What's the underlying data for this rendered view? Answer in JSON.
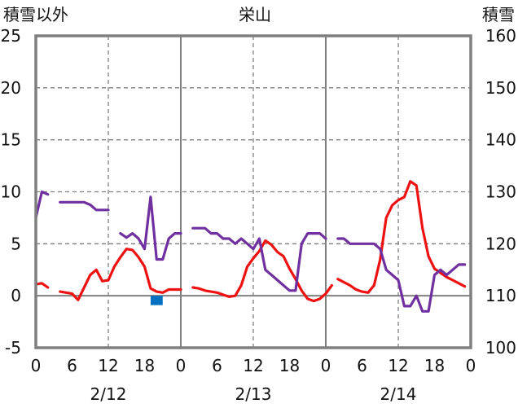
{
  "chart_data": {
    "type": "line",
    "title": "栄山",
    "left_axis_title": "積雪以外",
    "right_axis_title": "積雪",
    "left_ylim": [
      -5,
      25
    ],
    "left_yticks": [
      -5,
      0,
      5,
      10,
      15,
      20,
      25
    ],
    "right_ylim": [
      100,
      160
    ],
    "right_yticks": [
      100,
      110,
      120,
      130,
      140,
      150,
      160
    ],
    "x_range": [
      0,
      72
    ],
    "x_tick_positions": [
      0,
      6,
      12,
      18,
      24,
      30,
      36,
      42,
      48,
      54,
      60,
      66,
      72
    ],
    "x_tick_labels": [
      "0",
      "6",
      "12",
      "18",
      "0",
      "6",
      "12",
      "18",
      "0",
      "6",
      "12",
      "18",
      "0"
    ],
    "day_labels": [
      {
        "x": 6,
        "label": "2/12"
      },
      {
        "x": 18,
        "label": "2/13"
      },
      {
        "x": 30,
        "label": "2/14"
      }
    ],
    "day_positions": [
      12,
      36,
      60
    ],
    "day_boundaries": [
      24,
      48
    ],
    "dashed_verticals": [
      12,
      36,
      60
    ],
    "grid_h_values": [
      5,
      10,
      15,
      20
    ],
    "series": [
      {
        "color": "#ee1111",
        "axis": "left",
        "segments": [
          [
            [
              0,
              1.1
            ],
            [
              1,
              1.2
            ],
            [
              2,
              0.8
            ]
          ],
          [
            [
              4,
              0.4
            ],
            [
              5,
              0.3
            ],
            [
              6,
              0.2
            ],
            [
              7,
              -0.4
            ],
            [
              8,
              0.8
            ],
            [
              9,
              2.0
            ],
            [
              10,
              2.5
            ],
            [
              11,
              1.4
            ],
            [
              12,
              1.5
            ],
            [
              13,
              2.8
            ],
            [
              14,
              3.7
            ],
            [
              15,
              4.5
            ],
            [
              16,
              4.4
            ],
            [
              17,
              3.7
            ],
            [
              18,
              2.8
            ],
            [
              19,
              0.7
            ],
            [
              20,
              0.4
            ],
            [
              21,
              0.3
            ],
            [
              22,
              0.6
            ],
            [
              23,
              0.6
            ],
            [
              24,
              0.6
            ]
          ],
          [
            [
              26,
              0.8
            ],
            [
              27,
              0.7
            ],
            [
              28,
              0.5
            ],
            [
              29,
              0.4
            ],
            [
              30,
              0.3
            ],
            [
              31,
              0.1
            ],
            [
              32,
              -0.1
            ],
            [
              33,
              0.0
            ],
            [
              34,
              1.0
            ],
            [
              35,
              2.8
            ],
            [
              36,
              3.6
            ],
            [
              37,
              4.3
            ],
            [
              38,
              5.3
            ],
            [
              39,
              4.9
            ],
            [
              40,
              4.2
            ],
            [
              41,
              3.8
            ],
            [
              42,
              2.6
            ],
            [
              43,
              1.6
            ],
            [
              44,
              0.5
            ],
            [
              45,
              -0.3
            ],
            [
              46,
              -0.5
            ],
            [
              47,
              -0.3
            ],
            [
              48,
              0.2
            ],
            [
              49,
              1.0
            ]
          ],
          [
            [
              50,
              1.6
            ],
            [
              51,
              1.3
            ],
            [
              52,
              1.0
            ],
            [
              53,
              0.6
            ],
            [
              54,
              0.4
            ],
            [
              55,
              0.3
            ],
            [
              56,
              1.0
            ],
            [
              57,
              3.5
            ],
            [
              58,
              7.5
            ],
            [
              59,
              8.7
            ],
            [
              60,
              9.2
            ],
            [
              61,
              9.5
            ],
            [
              62,
              11.0
            ],
            [
              63,
              10.6
            ],
            [
              64,
              6.5
            ],
            [
              65,
              3.8
            ],
            [
              66,
              2.6
            ],
            [
              67,
              2.2
            ],
            [
              68,
              1.8
            ],
            [
              69,
              1.5
            ],
            [
              70,
              1.2
            ],
            [
              71,
              0.9
            ]
          ]
        ]
      },
      {
        "color": "#7030a0",
        "axis": "right",
        "segments": [
          [
            [
              0,
              125.0
            ],
            [
              1,
              130.0
            ],
            [
              2,
              129.5
            ]
          ],
          [
            [
              4,
              128.0
            ],
            [
              5,
              128.0
            ],
            [
              6,
              128.0
            ],
            [
              7,
              128.0
            ],
            [
              8,
              128.0
            ],
            [
              9,
              127.5
            ],
            [
              10,
              126.5
            ],
            [
              11,
              126.5
            ],
            [
              12,
              126.5
            ]
          ],
          [
            [
              14,
              122.0
            ],
            [
              15,
              121.2
            ],
            [
              16,
              122.0
            ],
            [
              17,
              121.0
            ],
            [
              18,
              119.0
            ],
            [
              19,
              129.0
            ],
            [
              20,
              117.0
            ],
            [
              21,
              117.0
            ],
            [
              22,
              121.0
            ],
            [
              23,
              122.0
            ],
            [
              24,
              122.0
            ]
          ],
          [
            [
              26,
              123.0
            ],
            [
              27,
              123.0
            ],
            [
              28,
              123.0
            ],
            [
              29,
              122.0
            ],
            [
              30,
              122.0
            ],
            [
              31,
              121.0
            ],
            [
              32,
              121.0
            ],
            [
              33,
              120.0
            ],
            [
              34,
              121.0
            ],
            [
              35,
              120.0
            ],
            [
              36,
              119.0
            ],
            [
              37,
              121.0
            ],
            [
              38,
              115.0
            ],
            [
              39,
              114.0
            ],
            [
              40,
              113.0
            ],
            [
              41,
              112.0
            ],
            [
              42,
              111.0
            ],
            [
              43,
              111.0
            ],
            [
              44,
              120.0
            ],
            [
              45,
              122.0
            ],
            [
              46,
              122.0
            ],
            [
              47,
              122.0
            ],
            [
              48,
              121.0
            ]
          ],
          [
            [
              50,
              121.0
            ],
            [
              51,
              121.0
            ],
            [
              52,
              120.0
            ],
            [
              53,
              120.0
            ],
            [
              54,
              120.0
            ],
            [
              55,
              120.0
            ],
            [
              56,
              120.0
            ],
            [
              57,
              119.0
            ],
            [
              58,
              115.0
            ],
            [
              59,
              114.0
            ],
            [
              60,
              113.0
            ],
            [
              61,
              108.0
            ],
            [
              62,
              108.0
            ],
            [
              63,
              110.0
            ],
            [
              64,
              107.0
            ],
            [
              65,
              107.0
            ],
            [
              66,
              114.0
            ],
            [
              67,
              115.0
            ],
            [
              68,
              114.0
            ],
            [
              69,
              115.0
            ],
            [
              70,
              116.0
            ],
            [
              71,
              116.0
            ]
          ]
        ]
      },
      {
        "type": "bar",
        "color": "#0070c0",
        "axis": "left",
        "x_start": 19,
        "x_end": 21,
        "value": -0.9
      }
    ],
    "colors": {
      "frame": "#7f7f7f",
      "grid": "#7f7f7f",
      "zero_line": "#7f7f7f"
    }
  }
}
